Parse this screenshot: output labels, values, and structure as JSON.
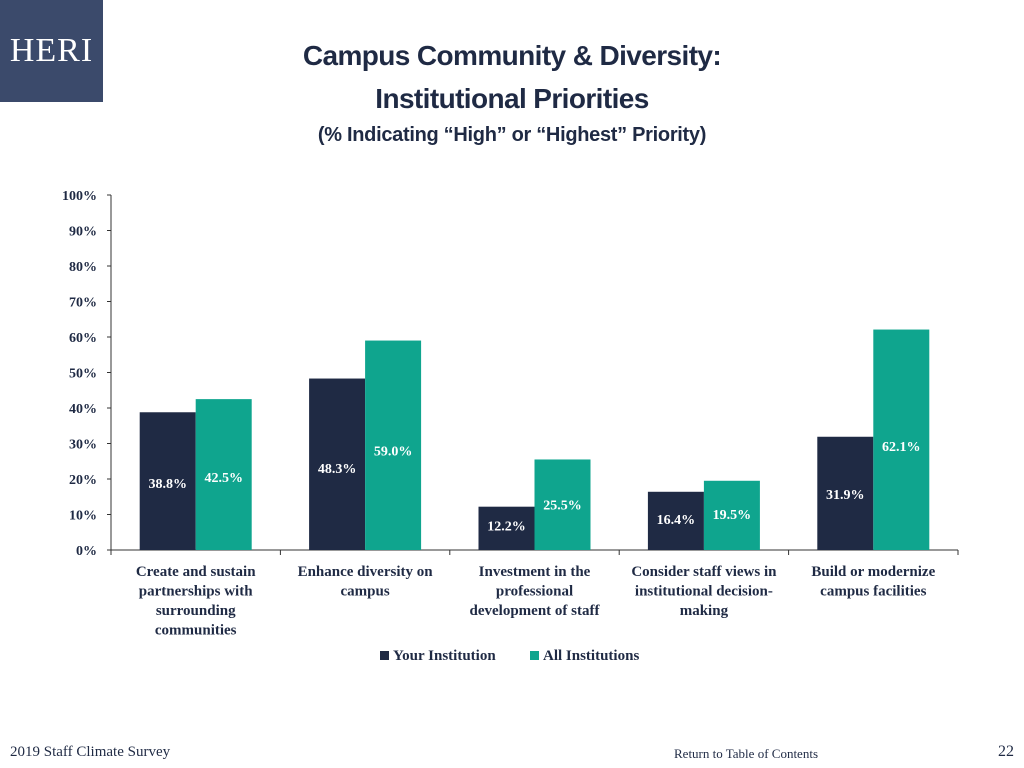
{
  "logo": {
    "text": "HERI"
  },
  "header": {
    "title_line1": "Campus Community & Diversity:",
    "title_line2": "Institutional Priorities",
    "subtitle": "(% Indicating “High” or “Highest” Priority)"
  },
  "colors": {
    "your_institution": "#1f2a44",
    "all_institutions": "#0fa58e",
    "axis": "#333333",
    "text": "#1f2a44",
    "logo_bg": "#3b4a6b"
  },
  "chart_data": {
    "type": "bar",
    "categories": [
      [
        "Create and sustain",
        "partnerships with",
        "surrounding",
        "communities"
      ],
      [
        "Enhance diversity on",
        "campus"
      ],
      [
        "Investment in the",
        "professional",
        "development of staff"
      ],
      [
        "Consider staff views in",
        "institutional decision-",
        "making"
      ],
      [
        "Build or modernize",
        "campus facilities"
      ]
    ],
    "series": [
      {
        "name": "Your Institution",
        "values": [
          38.8,
          48.3,
          12.2,
          16.4,
          31.9
        ],
        "labels": [
          "38.8%",
          "48.3%",
          "12.2%",
          "16.4%",
          "31.9%"
        ]
      },
      {
        "name": "All Institutions",
        "values": [
          42.5,
          59.0,
          25.5,
          19.5,
          62.1
        ],
        "labels": [
          "42.5%",
          "59.0%",
          "25.5%",
          "19.5%",
          "62.1%"
        ]
      }
    ],
    "ylim": [
      0,
      100
    ],
    "yticks": [
      "0%",
      "10%",
      "20%",
      "30%",
      "40%",
      "50%",
      "60%",
      "70%",
      "80%",
      "90%",
      "100%"
    ],
    "xlabel": "",
    "ylabel": "",
    "legend_position": "bottom-center",
    "grid": false
  },
  "footer": {
    "survey": "2019 Staff  Climate Survey",
    "link": "Return to Table of Contents",
    "page": "22"
  }
}
